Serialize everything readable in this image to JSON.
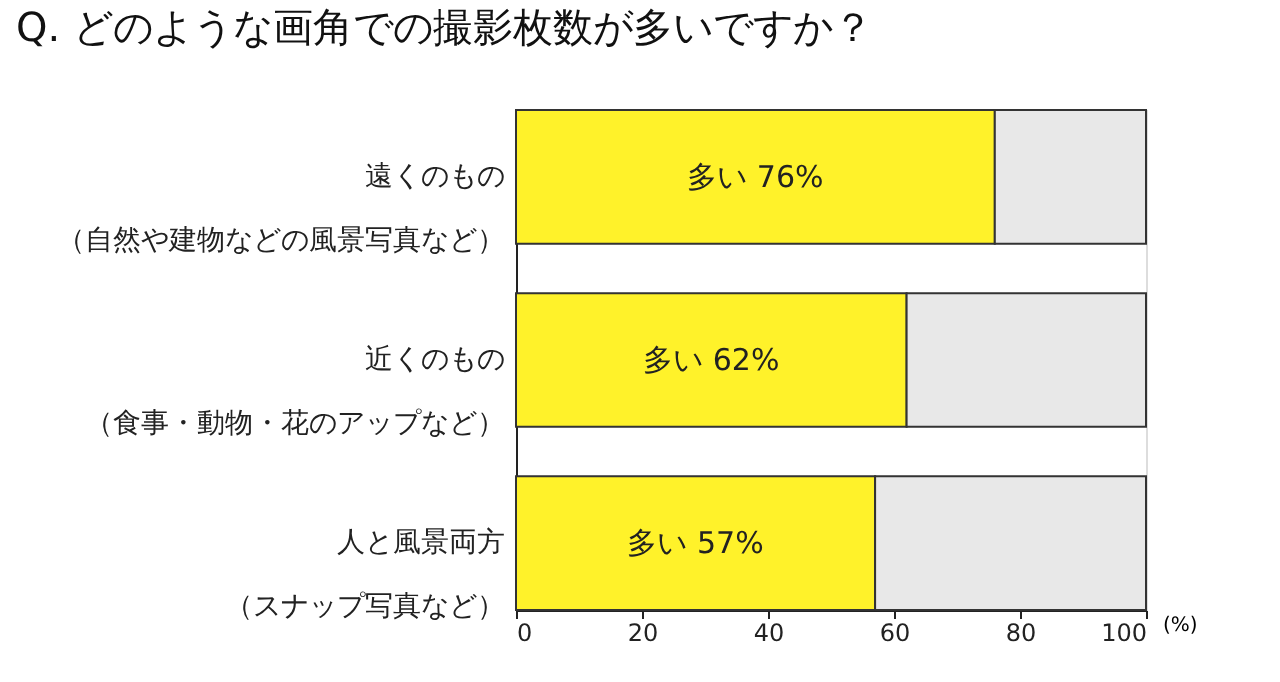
{
  "chart_data": {
    "type": "bar",
    "orientation": "horizontal",
    "stacked": true,
    "title": "Q. どのような画角での撮影枚数が多いですか？",
    "xlabel": "(%)",
    "categories": [
      "遠くのもの（自然や建物などの風景写真など）",
      "近くのもの（食事・動物・花のアップなど）",
      "人と風景両方（スナップ写真など）"
    ],
    "series": [
      {
        "color": "#fff22a",
        "values": [
          76,
          62,
          57
        ],
        "value_labels": [
          "多い 76%",
          "多い 62%",
          "多い 57%"
        ]
      },
      {
        "color": "#e8e8e8",
        "values": [
          24,
          38,
          43
        ]
      }
    ],
    "xlim": [
      0,
      100
    ],
    "xticks": [
      0,
      20,
      40,
      60,
      80,
      100
    ],
    "grid": false
  }
}
